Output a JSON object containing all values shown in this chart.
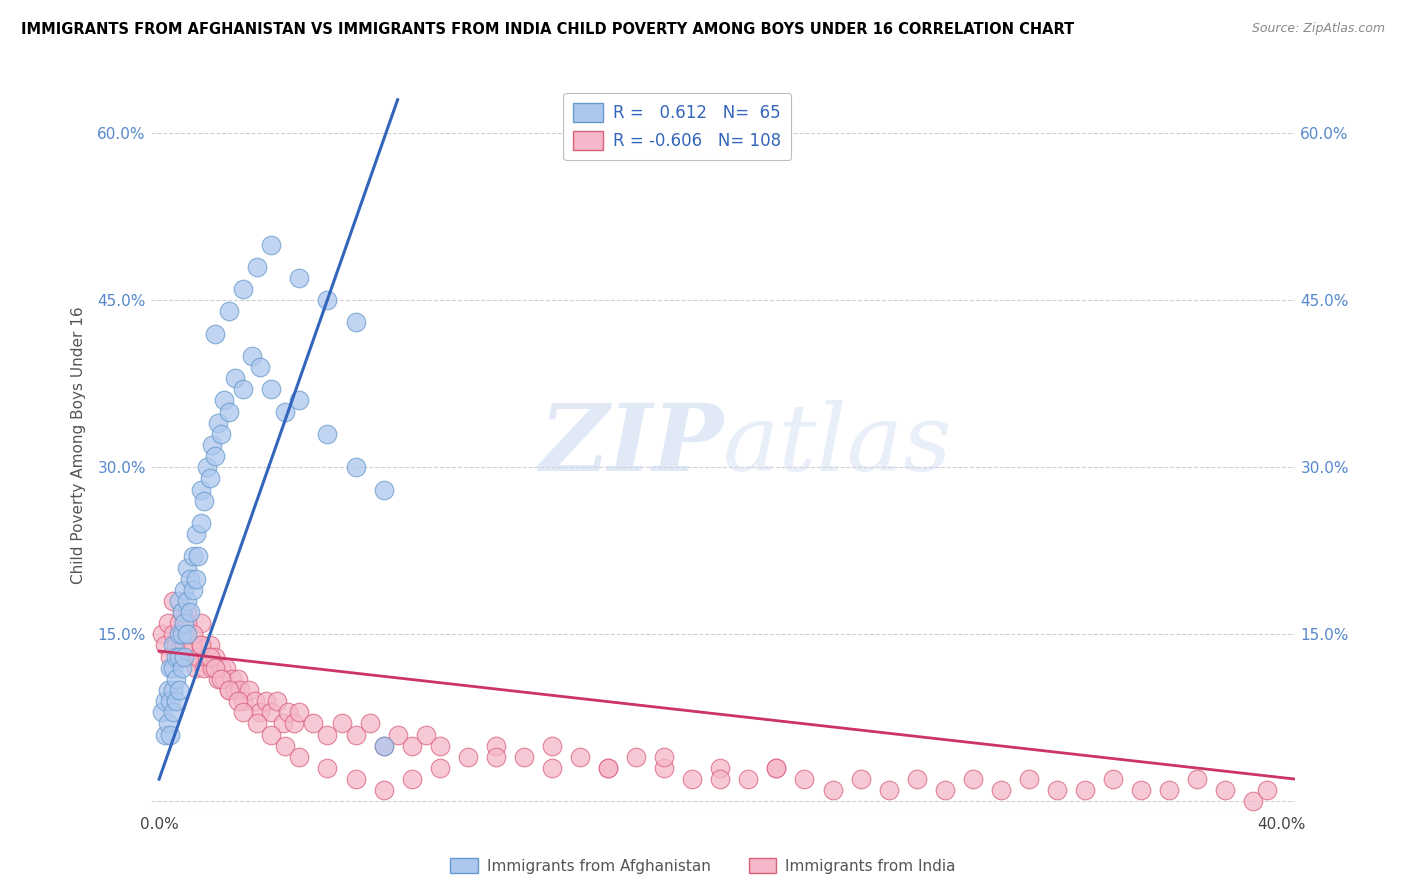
{
  "title": "IMMIGRANTS FROM AFGHANISTAN VS IMMIGRANTS FROM INDIA CHILD POVERTY AMONG BOYS UNDER 16 CORRELATION CHART",
  "source": "Source: ZipAtlas.com",
  "ylabel": "Child Poverty Among Boys Under 16",
  "xlim": [
    -0.003,
    0.405
  ],
  "ylim": [
    -0.01,
    0.65
  ],
  "x_ticks": [
    0.0,
    0.1,
    0.2,
    0.3,
    0.4
  ],
  "x_tick_labels": [
    "0.0%",
    "",
    "",
    "",
    "40.0%"
  ],
  "y_ticks": [
    0.0,
    0.15,
    0.3,
    0.45,
    0.6
  ],
  "y_tick_labels": [
    "",
    "15.0%",
    "30.0%",
    "45.0%",
    "60.0%"
  ],
  "afghanistan_color": "#adc8ee",
  "afghanistan_edge_color": "#6699cc",
  "india_color": "#f5b8ca",
  "india_edge_color": "#d9607a",
  "trend_afghanistan_color": "#3366bb",
  "trend_india_color": "#cc3366",
  "R_afghanistan": 0.612,
  "N_afghanistan": 65,
  "R_india": -0.606,
  "N_india": 108,
  "watermark_zip": "ZIP",
  "watermark_atlas": "atlas",
  "afghanistan_x": [
    0.001,
    0.002,
    0.002,
    0.003,
    0.003,
    0.004,
    0.004,
    0.004,
    0.005,
    0.005,
    0.005,
    0.005,
    0.006,
    0.006,
    0.006,
    0.007,
    0.007,
    0.007,
    0.007,
    0.008,
    0.008,
    0.008,
    0.009,
    0.009,
    0.009,
    0.01,
    0.01,
    0.01,
    0.011,
    0.011,
    0.012,
    0.012,
    0.013,
    0.013,
    0.014,
    0.015,
    0.015,
    0.016,
    0.017,
    0.018,
    0.019,
    0.02,
    0.021,
    0.022,
    0.023,
    0.025,
    0.027,
    0.03,
    0.033,
    0.036,
    0.04,
    0.045,
    0.05,
    0.06,
    0.07,
    0.08,
    0.02,
    0.025,
    0.03,
    0.035,
    0.04,
    0.05,
    0.06,
    0.07,
    0.08
  ],
  "afghanistan_y": [
    0.08,
    0.06,
    0.09,
    0.07,
    0.1,
    0.06,
    0.09,
    0.12,
    0.08,
    0.1,
    0.12,
    0.14,
    0.09,
    0.11,
    0.13,
    0.1,
    0.13,
    0.15,
    0.18,
    0.12,
    0.15,
    0.17,
    0.13,
    0.16,
    0.19,
    0.15,
    0.18,
    0.21,
    0.17,
    0.2,
    0.19,
    0.22,
    0.2,
    0.24,
    0.22,
    0.25,
    0.28,
    0.27,
    0.3,
    0.29,
    0.32,
    0.31,
    0.34,
    0.33,
    0.36,
    0.35,
    0.38,
    0.37,
    0.4,
    0.39,
    0.37,
    0.35,
    0.36,
    0.33,
    0.3,
    0.28,
    0.42,
    0.44,
    0.46,
    0.48,
    0.5,
    0.47,
    0.45,
    0.43,
    0.05
  ],
  "india_x": [
    0.001,
    0.002,
    0.003,
    0.004,
    0.005,
    0.006,
    0.007,
    0.008,
    0.009,
    0.01,
    0.01,
    0.011,
    0.012,
    0.013,
    0.014,
    0.015,
    0.015,
    0.016,
    0.017,
    0.018,
    0.019,
    0.02,
    0.021,
    0.022,
    0.023,
    0.024,
    0.025,
    0.026,
    0.027,
    0.028,
    0.029,
    0.03,
    0.032,
    0.034,
    0.036,
    0.038,
    0.04,
    0.042,
    0.044,
    0.046,
    0.048,
    0.05,
    0.055,
    0.06,
    0.065,
    0.07,
    0.075,
    0.08,
    0.085,
    0.09,
    0.095,
    0.1,
    0.11,
    0.12,
    0.13,
    0.14,
    0.15,
    0.16,
    0.17,
    0.18,
    0.19,
    0.2,
    0.21,
    0.22,
    0.23,
    0.24,
    0.25,
    0.26,
    0.27,
    0.28,
    0.29,
    0.3,
    0.31,
    0.32,
    0.33,
    0.34,
    0.35,
    0.36,
    0.37,
    0.38,
    0.39,
    0.395,
    0.005,
    0.008,
    0.01,
    0.012,
    0.015,
    0.018,
    0.02,
    0.022,
    0.025,
    0.028,
    0.03,
    0.035,
    0.04,
    0.045,
    0.05,
    0.06,
    0.07,
    0.08,
    0.09,
    0.1,
    0.12,
    0.14,
    0.16,
    0.18,
    0.2,
    0.22
  ],
  "india_y": [
    0.15,
    0.14,
    0.16,
    0.13,
    0.15,
    0.14,
    0.16,
    0.13,
    0.14,
    0.15,
    0.17,
    0.13,
    0.14,
    0.12,
    0.13,
    0.14,
    0.16,
    0.12,
    0.13,
    0.14,
    0.12,
    0.13,
    0.11,
    0.12,
    0.11,
    0.12,
    0.1,
    0.11,
    0.1,
    0.11,
    0.1,
    0.09,
    0.1,
    0.09,
    0.08,
    0.09,
    0.08,
    0.09,
    0.07,
    0.08,
    0.07,
    0.08,
    0.07,
    0.06,
    0.07,
    0.06,
    0.07,
    0.05,
    0.06,
    0.05,
    0.06,
    0.05,
    0.04,
    0.05,
    0.04,
    0.03,
    0.04,
    0.03,
    0.04,
    0.03,
    0.02,
    0.03,
    0.02,
    0.03,
    0.02,
    0.01,
    0.02,
    0.01,
    0.02,
    0.01,
    0.02,
    0.01,
    0.02,
    0.01,
    0.01,
    0.02,
    0.01,
    0.01,
    0.02,
    0.01,
    0.0,
    0.01,
    0.18,
    0.17,
    0.16,
    0.15,
    0.14,
    0.13,
    0.12,
    0.11,
    0.1,
    0.09,
    0.08,
    0.07,
    0.06,
    0.05,
    0.04,
    0.03,
    0.02,
    0.01,
    0.02,
    0.03,
    0.04,
    0.05,
    0.03,
    0.04,
    0.02,
    0.03
  ]
}
